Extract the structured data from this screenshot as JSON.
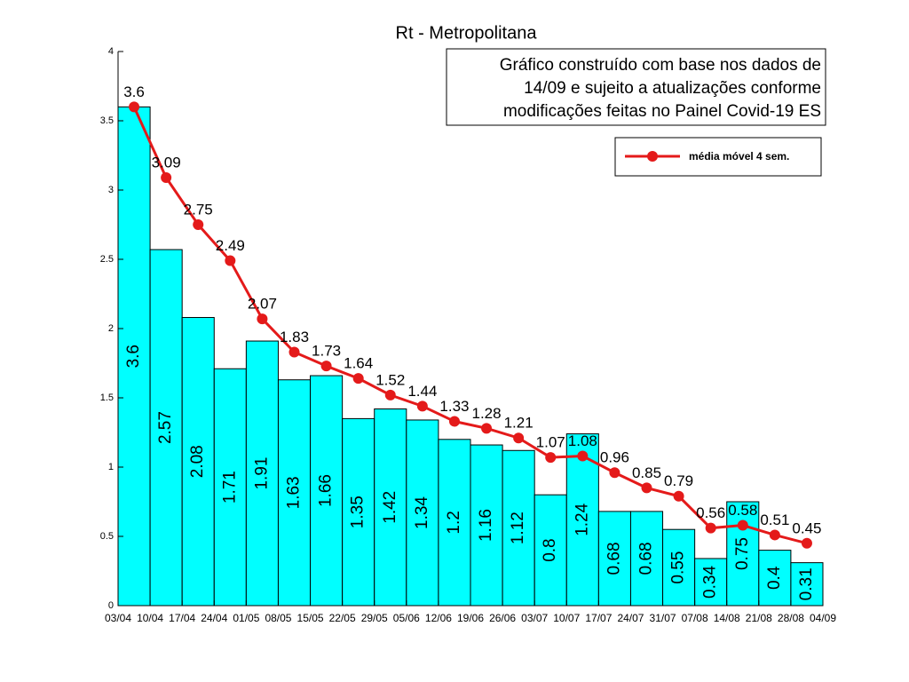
{
  "chart_data": {
    "type": "bar_line",
    "title": "Rt - Metropolitana",
    "annotation": [
      "Gráfico construído com base nos dados de",
      "14/09 e sujeito a atualizações conforme",
      "modificações feitas no Painel Covid-19 ES"
    ],
    "edge_labels": [
      "03/04",
      "10/04",
      "17/04",
      "24/04",
      "01/05",
      "08/05",
      "15/05",
      "22/05",
      "29/05",
      "05/06",
      "12/06",
      "19/06",
      "26/06",
      "03/07",
      "10/07",
      "17/07",
      "24/07",
      "31/07",
      "07/08",
      "14/08",
      "21/08",
      "28/08",
      "04/09"
    ],
    "bars": {
      "color": "#00ffff",
      "values": [
        3.6,
        2.57,
        2.08,
        1.71,
        1.91,
        1.63,
        1.66,
        1.35,
        1.42,
        1.34,
        1.2,
        1.16,
        1.12,
        0.8,
        1.24,
        0.68,
        0.68,
        0.55,
        0.34,
        0.75,
        0.4,
        0.31
      ]
    },
    "line": {
      "name": "média móvel 4 sem.",
      "color": "#e41a1a",
      "values": [
        3.6,
        3.09,
        2.75,
        2.49,
        2.07,
        1.83,
        1.73,
        1.64,
        1.52,
        1.44,
        1.33,
        1.28,
        1.21,
        1.07,
        1.08,
        0.96,
        0.85,
        0.79,
        0.56,
        0.58,
        0.51,
        0.45
      ]
    },
    "ylim": [
      0,
      4
    ],
    "yticks": [
      0,
      0.5,
      1,
      1.5,
      2,
      2.5,
      3,
      3.5,
      4
    ],
    "legend": "upper right"
  }
}
